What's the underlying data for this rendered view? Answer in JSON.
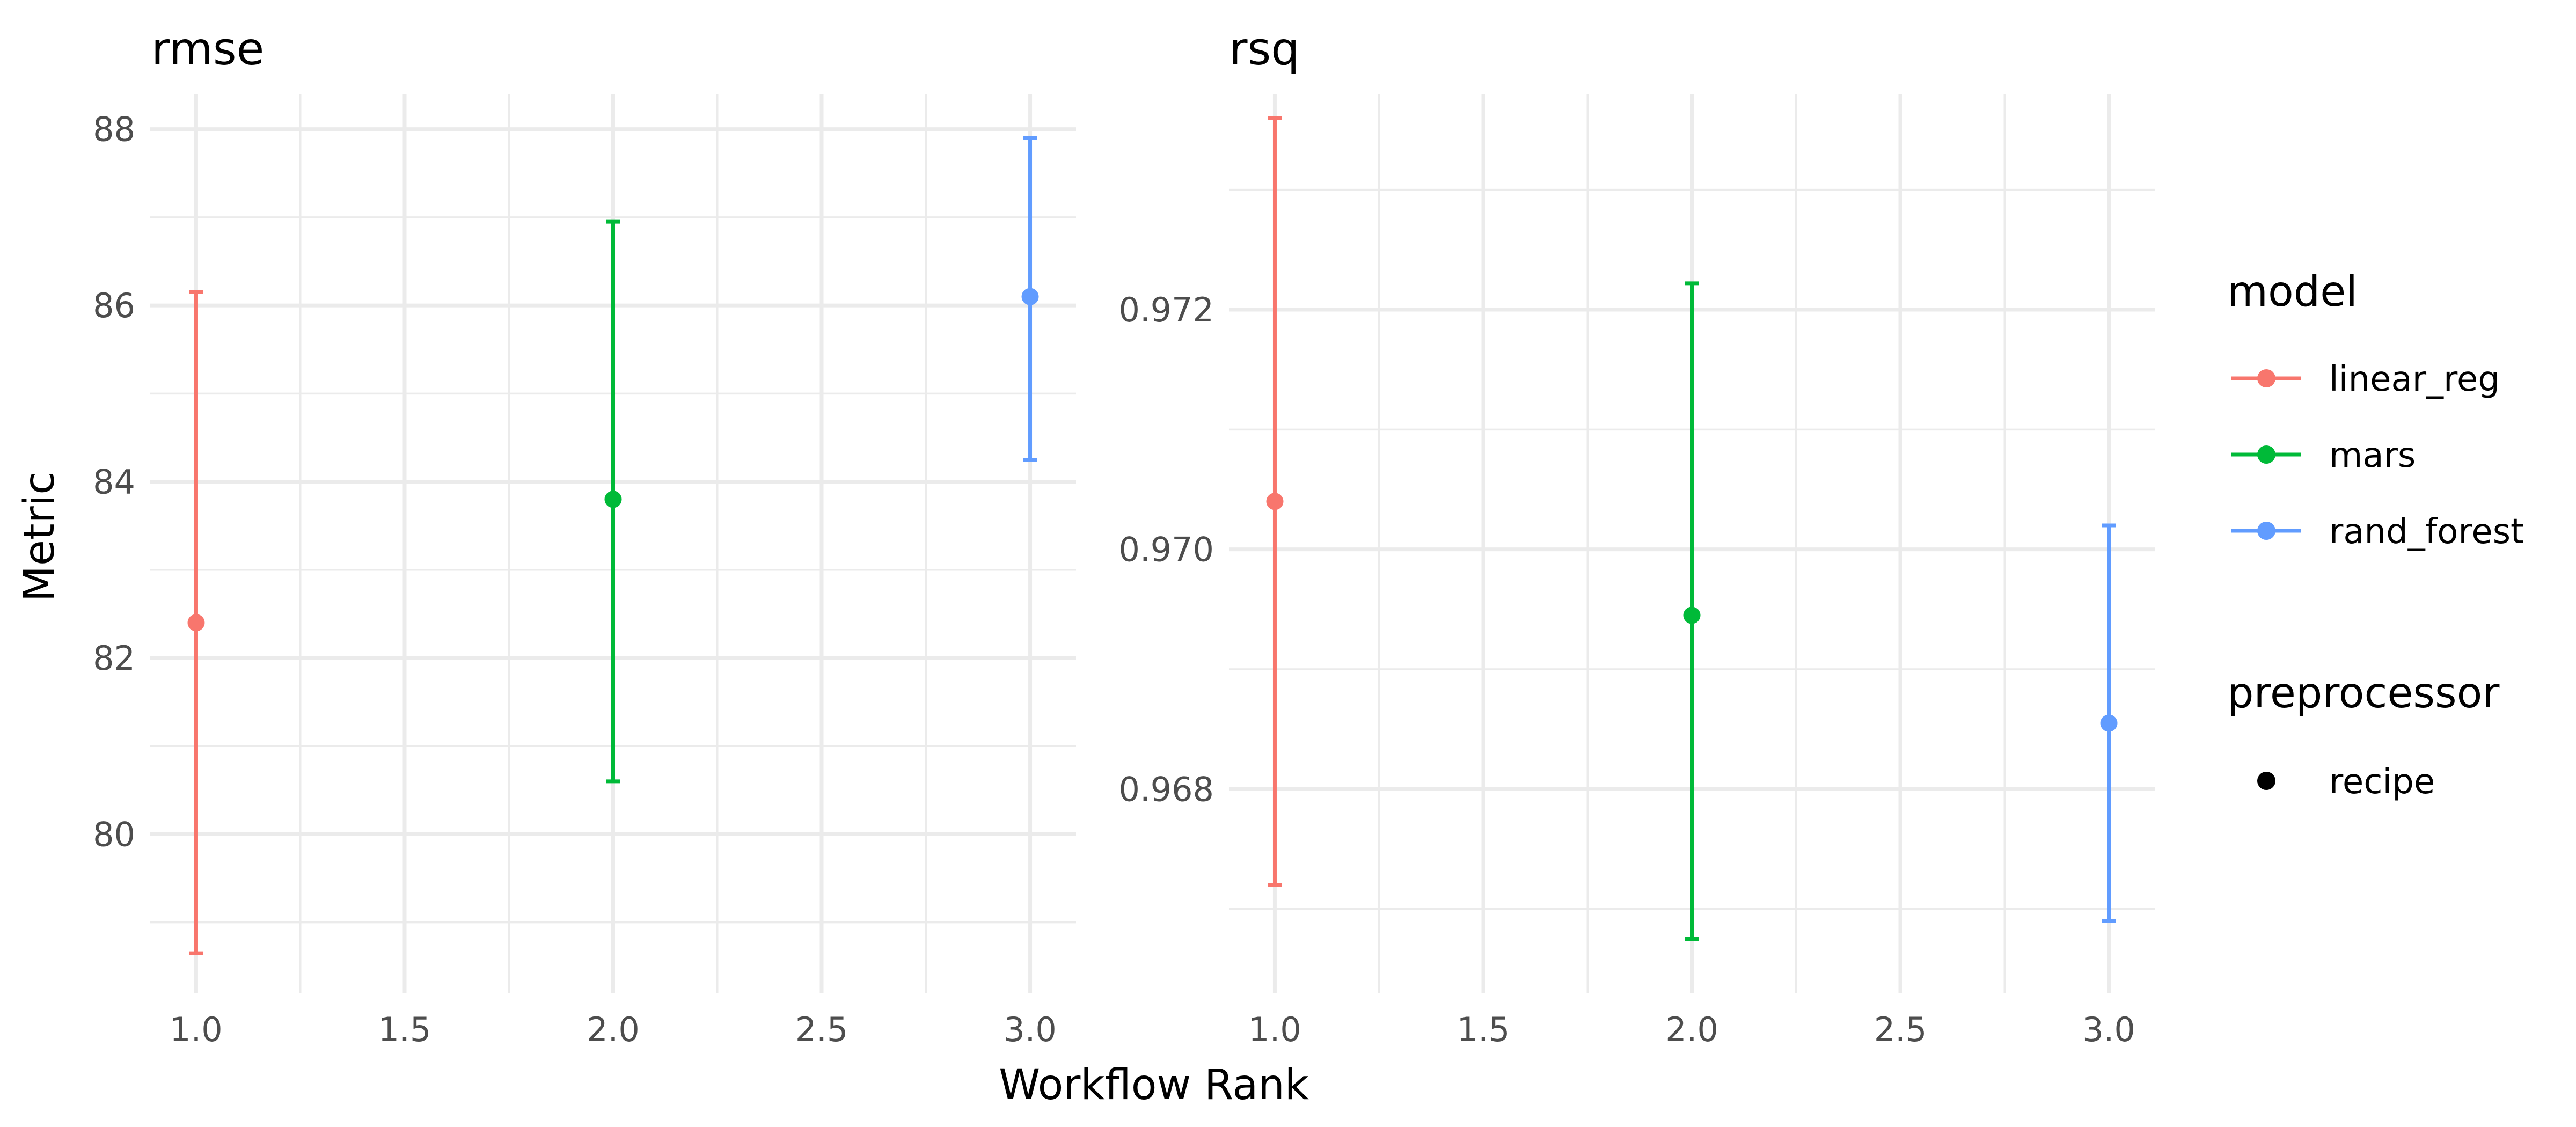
{
  "chart_data": {
    "type": "errorbar",
    "xlabel": "Workflow Rank",
    "ylabel": "Metric",
    "x_ticks": [
      "1.0",
      "1.5",
      "2.0",
      "2.5",
      "3.0"
    ],
    "xlim": [
      0.89,
      3.11
    ],
    "panels": [
      {
        "title": "rmse",
        "ylim": [
          78.2,
          88.4
        ],
        "y_ticks": [
          80,
          82,
          84,
          86,
          88
        ],
        "y_tick_labels": [
          "80",
          "82",
          "84",
          "86",
          "88"
        ],
        "points": [
          {
            "model": "linear_reg",
            "x": 1,
            "y": 82.4,
            "lower": 78.65,
            "upper": 86.15
          },
          {
            "model": "mars",
            "x": 2,
            "y": 83.8,
            "lower": 80.6,
            "upper": 86.95
          },
          {
            "model": "rand_forest",
            "x": 3,
            "y": 86.1,
            "lower": 84.25,
            "upper": 87.9
          }
        ]
      },
      {
        "title": "rsq",
        "ylim": [
          0.9663,
          0.9738
        ],
        "y_ticks": [
          0.968,
          0.97,
          0.972
        ],
        "y_tick_labels": [
          "0.968",
          "0.970",
          "0.972"
        ],
        "points": [
          {
            "model": "linear_reg",
            "x": 1,
            "y": 0.9704,
            "lower": 0.9672,
            "upper": 0.9736
          },
          {
            "model": "mars",
            "x": 2,
            "y": 0.96945,
            "lower": 0.96675,
            "upper": 0.97222
          },
          {
            "model": "rand_forest",
            "x": 3,
            "y": 0.96855,
            "lower": 0.9669,
            "upper": 0.9702
          }
        ]
      }
    ],
    "legend": {
      "position": "right",
      "model_title": "model",
      "models": [
        {
          "name": "linear_reg",
          "color": "#F8766D"
        },
        {
          "name": "mars",
          "color": "#00BA38"
        },
        {
          "name": "rand_forest",
          "color": "#619CFF"
        }
      ],
      "preprocessor_title": "preprocessor",
      "preprocessors": [
        {
          "name": "recipe",
          "color": "#000000"
        }
      ]
    },
    "grid": true
  }
}
